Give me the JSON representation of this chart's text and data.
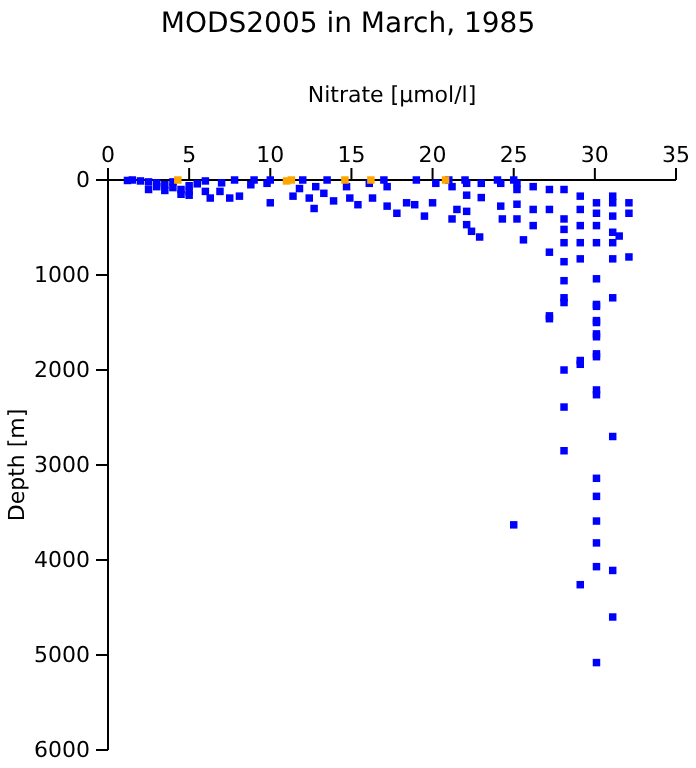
{
  "chart_data": {
    "type": "scatter",
    "title": "MODS2005 in March, 1985",
    "xlabel": "Nitrate [µmol/l]",
    "ylabel": "Depth [m]",
    "marker": "square",
    "grid": false,
    "xlim": [
      0,
      35
    ],
    "xticks": [
      0,
      5,
      10,
      15,
      20,
      25,
      30,
      35
    ],
    "ylim": [
      6000,
      0
    ],
    "yticks": [
      0,
      1000,
      2000,
      3000,
      4000,
      5000,
      6000
    ],
    "series": [
      {
        "color": "#0000ff",
        "x": [
          1.2,
          1.5,
          2,
          2.5,
          3,
          3,
          3.5,
          4,
          4,
          4.5,
          5,
          5,
          5.5,
          6,
          2.5,
          3.5,
          4.5,
          5,
          6,
          7,
          7.8,
          9,
          10,
          12,
          13.5,
          17,
          19,
          21,
          22,
          24,
          25,
          6.3,
          6.9,
          7.5,
          8.1,
          8.8,
          9.8,
          10,
          11.4,
          11.8,
          12.4,
          12.7,
          12.8,
          13.3,
          13.9,
          14.7,
          14.9,
          15.4,
          16.1,
          16.3,
          17.2,
          17.2,
          17.8,
          18.4,
          18.9,
          19.5,
          20,
          20.2,
          21.2,
          21.2,
          21.5,
          22.1,
          22.1,
          22.1,
          22.1,
          22.4,
          22.9,
          23,
          23,
          24.2,
          24.2,
          24.3,
          25.2,
          25.2,
          25.2,
          25.2,
          25.6,
          26.2,
          26.2,
          26.2,
          27.2,
          27.2,
          27.2,
          27.2,
          28.1,
          28.1,
          28.1,
          28.1,
          28.1,
          28.1,
          28.1,
          29.1,
          29.1,
          29.1,
          29.1,
          29.1,
          29.1,
          30.1,
          30.1,
          30.1,
          30.1,
          30.1,
          30.1,
          30.1,
          30.1,
          30.1,
          30.1,
          31.1,
          31.1,
          31.1,
          31.1,
          31.1,
          31.1,
          31.1,
          31.5,
          32.1,
          32.1,
          32.1,
          28.1,
          30.1,
          27.2,
          30.1,
          30.1,
          29.1,
          30.1,
          28.1,
          30.1,
          28.1,
          31.1,
          28.1,
          30.1,
          30.1,
          25,
          30.1,
          30.1,
          30.1,
          31.1,
          29.1,
          31.1,
          30.1
        ],
        "values": [
          5,
          0,
          10,
          20,
          30,
          70,
          50,
          80,
          20,
          100,
          60,
          120,
          40,
          10,
          100,
          110,
          150,
          160,
          120,
          30,
          0,
          0,
          0,
          0,
          0,
          0,
          0,
          0,
          0,
          0,
          0,
          190,
          120,
          190,
          170,
          50,
          35,
          240,
          170,
          90,
          190,
          300,
          70,
          140,
          220,
          70,
          190,
          260,
          35,
          190,
          70,
          275,
          350,
          240,
          260,
          380,
          240,
          35,
          70,
          410,
          310,
          35,
          160,
          330,
          470,
          540,
          600,
          35,
          185,
          35,
          275,
          410,
          35,
          100,
          255,
          410,
          630,
          70,
          310,
          480,
          100,
          310,
          760,
          1430,
          100,
          410,
          520,
          660,
          860,
          1060,
          1240,
          170,
          310,
          480,
          660,
          830,
          1900,
          240,
          350,
          480,
          660,
          1040,
          1310,
          1480,
          1620,
          1830,
          2210,
          170,
          240,
          380,
          550,
          660,
          830,
          1240,
          590,
          240,
          350,
          810,
          1290,
          1330,
          1460,
          1500,
          1650,
          1940,
          1860,
          2000,
          2260,
          2390,
          2700,
          2850,
          3140,
          3330,
          3630,
          3590,
          3820,
          4070,
          4110,
          4260,
          4600,
          5080
        ]
      },
      {
        "color": "#ffa500",
        "x": [
          4.3,
          11,
          11.3,
          14.6,
          16.2,
          20.8
        ],
        "values": [
          0,
          10,
          0,
          0,
          0,
          0
        ]
      }
    ]
  }
}
